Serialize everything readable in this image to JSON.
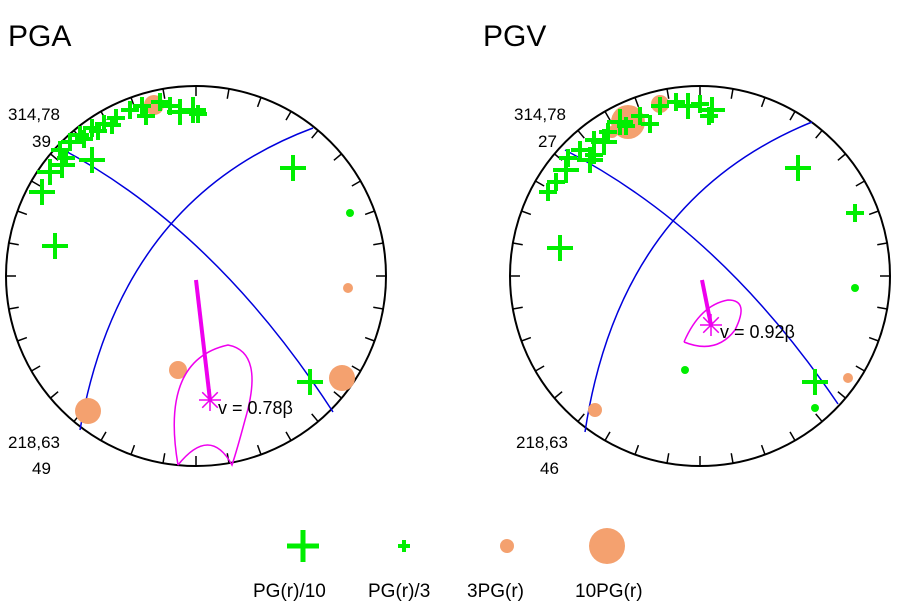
{
  "colors": {
    "plus": "#00ee00",
    "circle": "#f4a16f",
    "planes": "#0000dd",
    "vector": "#ee00ee",
    "outline": "#000000"
  },
  "panels": [
    {
      "title": "PGA",
      "top_left_label": [
        "314,78",
        "39"
      ],
      "bottom_left_label": [
        "218,63",
        "49"
      ],
      "velocity_label": "v = 0.78β"
    },
    {
      "title": "PGV",
      "top_left_label": [
        "314,78",
        "27"
      ],
      "bottom_left_label": [
        "218,63",
        "46"
      ],
      "velocity_label": "v = 0.92β"
    }
  ],
  "legend": [
    {
      "symbol": "plus-large",
      "label": "PG(r)/10"
    },
    {
      "symbol": "plus-small",
      "label": "PG(r)/3"
    },
    {
      "symbol": "circle-small",
      "label": "3PG(r)"
    },
    {
      "symbol": "circle-large",
      "label": "10PG(r)"
    }
  ]
}
